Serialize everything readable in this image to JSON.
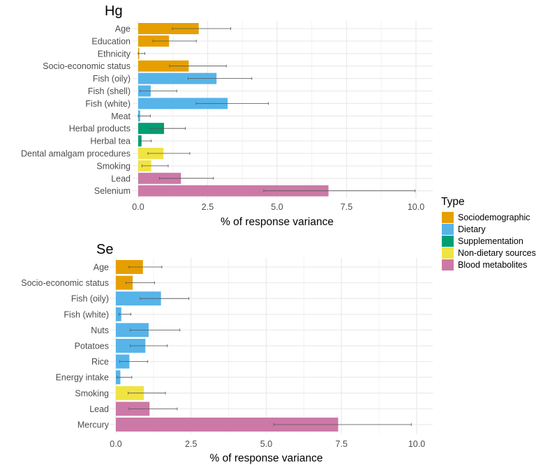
{
  "legend": {
    "title": "Type",
    "items": [
      {
        "label": "Sociodemographic",
        "color": "#E69F00"
      },
      {
        "label": "Dietary",
        "color": "#56B4E9"
      },
      {
        "label": "Supplementation",
        "color": "#009E73"
      },
      {
        "label": "Non-dietary sources",
        "color": "#F0E442"
      },
      {
        "label": "Blood metabolites",
        "color": "#CC79A7"
      }
    ]
  },
  "chart_data": [
    {
      "type": "bar",
      "orientation": "horizontal",
      "title": "Hg",
      "xlabel": "% of response variance",
      "ylabel": "",
      "xlim": [
        0,
        10
      ],
      "xticks": [
        "0.0",
        "2.5",
        "5.0",
        "7.5",
        "10.0"
      ],
      "grid": true,
      "legend_position": "right",
      "categories": [
        "Age",
        "Education",
        "Ethnicity",
        "Socio-economic status",
        "Fish (oily)",
        "Fish (shell)",
        "Fish (white)",
        "Meat",
        "Herbal products",
        "Herbal tea",
        "Dental amalgam procedures",
        "Smoking",
        "Lead",
        "Selenium"
      ],
      "types": [
        "Sociodemographic",
        "Sociodemographic",
        "Sociodemographic",
        "Sociodemographic",
        "Dietary",
        "Dietary",
        "Dietary",
        "Dietary",
        "Supplementation",
        "Supplementation",
        "Non-dietary sources",
        "Non-dietary sources",
        "Blood metabolites",
        "Blood metabolites"
      ],
      "values": [
        2.18,
        1.11,
        0.03,
        1.82,
        2.82,
        0.45,
        3.22,
        0.07,
        0.93,
        0.12,
        0.91,
        0.47,
        1.54,
        6.85
      ],
      "err_low": [
        1.23,
        0.53,
        0.0,
        1.13,
        1.8,
        0.07,
        2.09,
        0.0,
        0.42,
        0.1,
        0.35,
        0.14,
        0.77,
        4.52
      ],
      "err_high": [
        3.33,
        2.09,
        0.24,
        3.17,
        4.09,
        1.39,
        4.69,
        0.44,
        1.7,
        0.47,
        1.86,
        1.08,
        2.71,
        9.97
      ]
    },
    {
      "type": "bar",
      "orientation": "horizontal",
      "title": "Se",
      "xlabel": "% of response variance",
      "ylabel": "",
      "xlim": [
        0,
        10
      ],
      "xticks": [
        "0.0",
        "2.5",
        "5.0",
        "7.5",
        "10.0"
      ],
      "grid": true,
      "categories": [
        "Age",
        "Socio-economic status",
        "Fish (oily)",
        "Fish (white)",
        "Nuts",
        "Potatoes",
        "Rice",
        "Energy intake",
        "Smoking",
        "Lead",
        "Mercury"
      ],
      "types": [
        "Sociodemographic",
        "Sociodemographic",
        "Dietary",
        "Dietary",
        "Dietary",
        "Dietary",
        "Dietary",
        "Dietary",
        "Non-dietary sources",
        "Blood metabolites",
        "Blood metabolites"
      ],
      "values": [
        0.9,
        0.56,
        1.5,
        0.18,
        1.09,
        0.98,
        0.45,
        0.15,
        0.93,
        1.12,
        7.39
      ],
      "err_low": [
        0.44,
        0.34,
        0.81,
        0.1,
        0.48,
        0.48,
        0.13,
        0.04,
        0.41,
        0.44,
        5.25
      ],
      "err_high": [
        1.53,
        1.29,
        2.43,
        0.5,
        2.13,
        1.71,
        1.06,
        0.53,
        1.65,
        2.04,
        9.82
      ]
    }
  ]
}
